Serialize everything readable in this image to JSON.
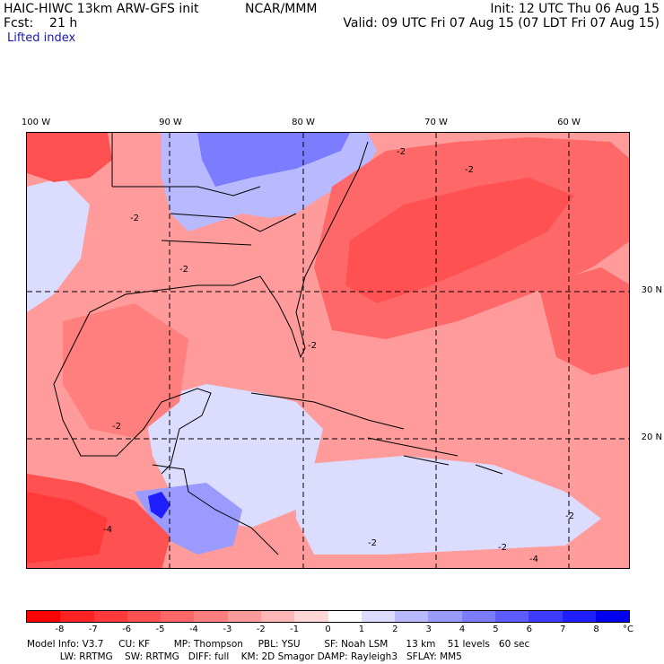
{
  "header": {
    "line1_left": "HAIC-HIWC 13km ARW-GFS init",
    "line1_center": "NCAR/MMM",
    "line1_right": "Init: 12 UTC Thu 06 Aug 15",
    "line2_left": "Fcst:    21 h",
    "line2_right": "Valid: 09 UTC Fri 07 Aug 15 (07 LDT Fri 07 Aug 15)",
    "field": "Lifted index"
  },
  "axes": {
    "lon_labels": [
      "100 W",
      "90 W",
      "80 W",
      "70 W",
      "60 W"
    ],
    "lat_labels": [
      "30 N",
      "20 N"
    ]
  },
  "legend": {
    "colors": [
      "#ff0000",
      "#ff2424",
      "#ff3a3a",
      "#ff5151",
      "#ff6868",
      "#ff7f7f",
      "#ff9b9b",
      "#ffb7b7",
      "#ffd7d7",
      "#ffffff",
      "#dcdcff",
      "#b9b9ff",
      "#9a9aff",
      "#7c7cff",
      "#5c5cff",
      "#3c3cff",
      "#1e1eff",
      "#0000f0"
    ],
    "ticks": [
      "-8",
      "-7",
      "-6",
      "-5",
      "-4",
      "-3",
      "-2",
      "-1",
      "0",
      "1",
      "2",
      "3",
      "4",
      "5",
      "6",
      "7",
      "8"
    ],
    "unit": "°C"
  },
  "contour_labels": [
    "-2",
    "-2",
    "-2",
    "-2",
    "-2",
    "-2",
    "-2",
    "-2",
    "-2",
    "-4",
    "-4"
  ],
  "model_info": {
    "line1": "Model Info: V3.7     CU: KF        MP: Thompson     PBL: YSU        SF: Noah LSM      13 km    51 levels   60 sec",
    "line2": "           LW: RRTMG    SW: RRTMG   DIFF: full    KM: 2D Smagor DAMP: Rayleigh3   SFLAY: MM5"
  }
}
